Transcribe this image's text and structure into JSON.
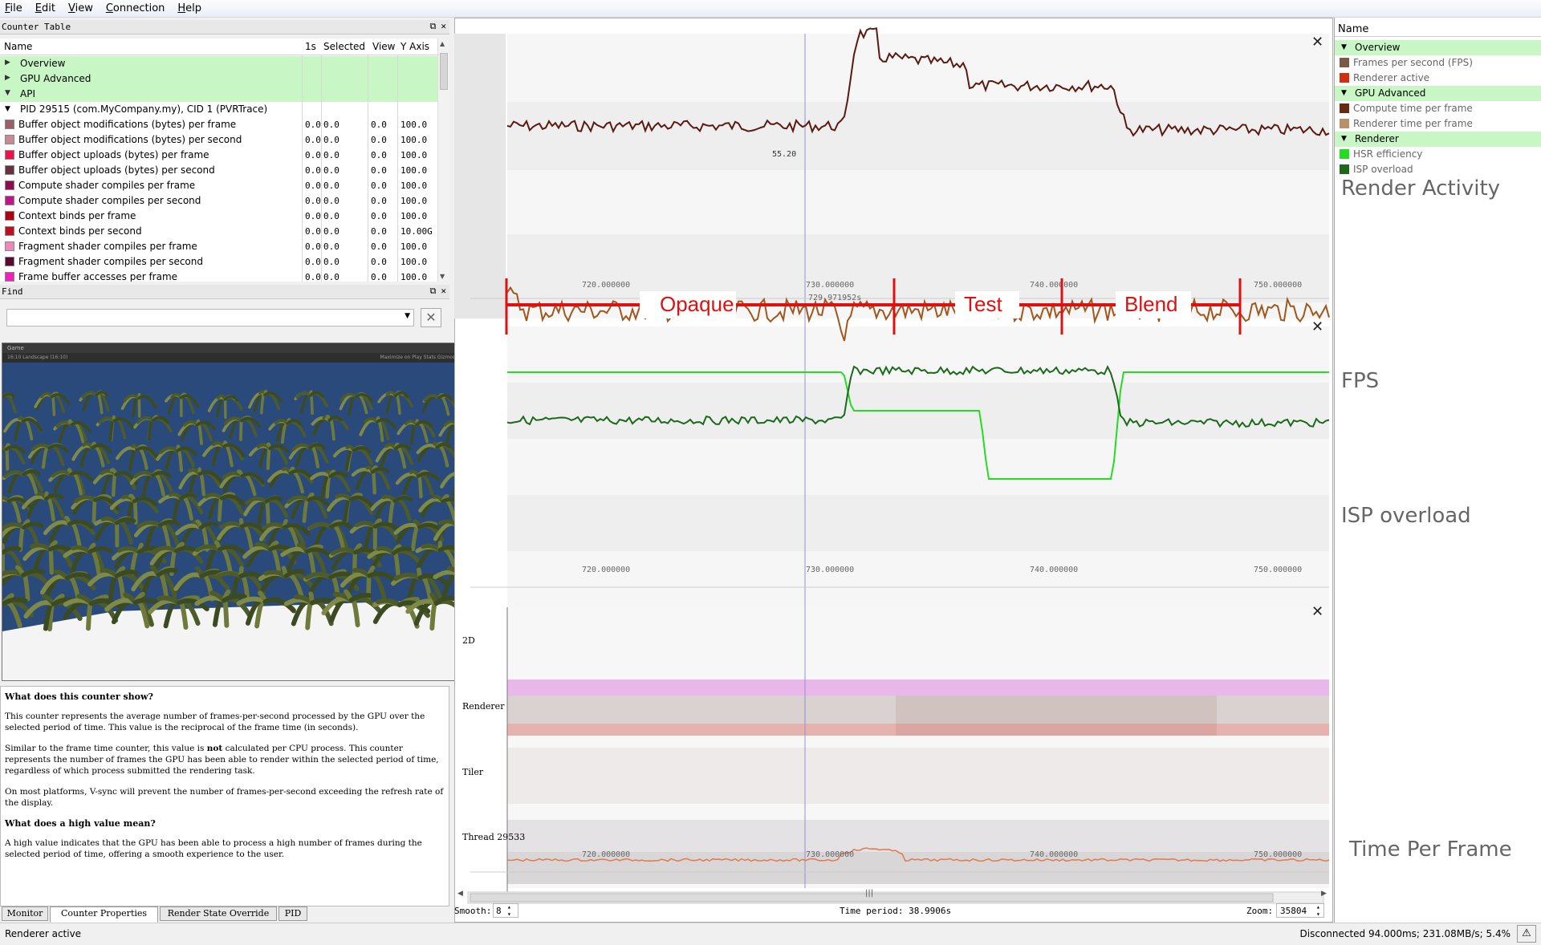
{
  "menu": [
    "File",
    "Edit",
    "View",
    "Connection",
    "Help"
  ],
  "counter_table": {
    "title": "Counter Table",
    "columns": [
      "Name",
      "1s",
      "Selected",
      "View",
      "Y Axis"
    ],
    "groups": [
      "Overview",
      "GPU Advanced",
      "API"
    ],
    "process": "PID 29515 (com.MyCompany.my), CID 1 (PVRTrace)",
    "rows": [
      {
        "name": "Buffer object modifications (bytes) per frame",
        "color": "#9b5f66",
        "v1": "0.0",
        "sel": "0.0",
        "view": "0.0",
        "yaxis": "100.0"
      },
      {
        "name": "Buffer object modifications (bytes) per second",
        "color": "#c98a93",
        "v1": "0.0",
        "sel": "0.0",
        "view": "0.0",
        "yaxis": "100.0"
      },
      {
        "name": "Buffer object uploads (bytes) per frame",
        "color": "#ee1144",
        "v1": "0.0",
        "sel": "0.0",
        "view": "0.0",
        "yaxis": "100.0"
      },
      {
        "name": "Buffer object uploads (bytes) per second",
        "color": "#6a3040",
        "v1": "0.0",
        "sel": "0.0",
        "view": "0.0",
        "yaxis": "100.0"
      },
      {
        "name": "Compute shader compiles per frame",
        "color": "#8a0e4e",
        "v1": "0.0",
        "sel": "0.0",
        "view": "0.0",
        "yaxis": "100.0"
      },
      {
        "name": "Compute shader compiles per second",
        "color": "#c0148a",
        "v1": "0.0",
        "sel": "0.0",
        "view": "0.0",
        "yaxis": "100.0"
      },
      {
        "name": "Context binds per frame",
        "color": "#b00010",
        "v1": "0.0",
        "sel": "0.0",
        "view": "0.0",
        "yaxis": "100.0"
      },
      {
        "name": "Context binds per second",
        "color": "#c01020",
        "v1": "0.0",
        "sel": "0.0",
        "view": "0.0",
        "yaxis": "10.00G"
      },
      {
        "name": "Fragment shader compiles per frame",
        "color": "#ee88bb",
        "v1": "0.0",
        "sel": "0.0",
        "view": "0.0",
        "yaxis": "100.0"
      },
      {
        "name": "Fragment shader compiles per second",
        "color": "#5a0a30",
        "v1": "0.0",
        "sel": "0.0",
        "view": "0.0",
        "yaxis": "100.0"
      },
      {
        "name": "Frame buffer accesses per frame",
        "color": "#ee22bb",
        "v1": "0.0",
        "sel": "0.0",
        "view": "0.0",
        "yaxis": "100.0"
      }
    ]
  },
  "find": {
    "title": "Find",
    "value": ""
  },
  "game_window": {
    "tab": "Game",
    "aspect": "16:10 Landscape (16:10)",
    "menu": "Maximize on Play  Stats  Gizmos"
  },
  "description": {
    "h1": "What does this counter show?",
    "p1": "This counter represents the average number of frames-per-second processed by the GPU over the selected period of time. This value is the reciprocal of the frame time (in seconds).",
    "p2a": "Similar to the frame time counter, this value is ",
    "p2b": "not",
    "p2c": " calculated per CPU process. This counter represents the number of frames the GPU has been able to render within the selected period of time, regardless of which process submitted the rendering task.",
    "p3": "On most platforms, V-sync will prevent the number of frames-per-second exceeding the refresh rate of the display.",
    "h2": "What does a high value mean?",
    "p4": "A high value indicates that the GPU has been able to process a high number of frames during the selected period of time, offering a smooth experience to the user."
  },
  "tabs": [
    "Monitor",
    "Counter Properties",
    "Render State Override",
    "PID"
  ],
  "status": {
    "left": "Renderer active",
    "right": "Disconnected 94.000ms; 231.08MB/s; 5.4%"
  },
  "graph": {
    "ticks": [
      "720.000000",
      "730.000000",
      "740.000000",
      "750.000000"
    ],
    "cursor_time": "729.971952s",
    "cursor_value": "55.20",
    "timeline_labels": [
      "2D",
      "Renderer",
      "Tiler",
      "Thread 29533"
    ],
    "smooth_label": "Smooth:",
    "smooth_value": "8",
    "time_period": "Time period: 38.9906s",
    "zoom_label": "Zoom:",
    "zoom_value": "35804",
    "annotations": [
      "Opaque",
      "Test",
      "Blend"
    ]
  },
  "right_panel": {
    "header": "Name",
    "items": [
      {
        "type": "group",
        "label": "Overview"
      },
      {
        "type": "item",
        "label": "Frames per second (FPS)",
        "color": "#7b5a45"
      },
      {
        "type": "item",
        "label": "Renderer active",
        "color": "#d03010"
      },
      {
        "type": "group",
        "label": "GPU Advanced"
      },
      {
        "type": "item",
        "label": "Compute time per frame",
        "color": "#6a2a10"
      },
      {
        "type": "item",
        "label": "Renderer time per frame",
        "color": "#b8906a"
      },
      {
        "type": "group",
        "label": "Renderer"
      },
      {
        "type": "item",
        "label": "HSR efficiency",
        "color": "#22dd22"
      },
      {
        "type": "item",
        "label": "ISP overload",
        "color": "#1a6a1a"
      }
    ],
    "labels": [
      "Render Activity",
      "FPS",
      "ISP overload",
      "Time Per Frame"
    ]
  }
}
